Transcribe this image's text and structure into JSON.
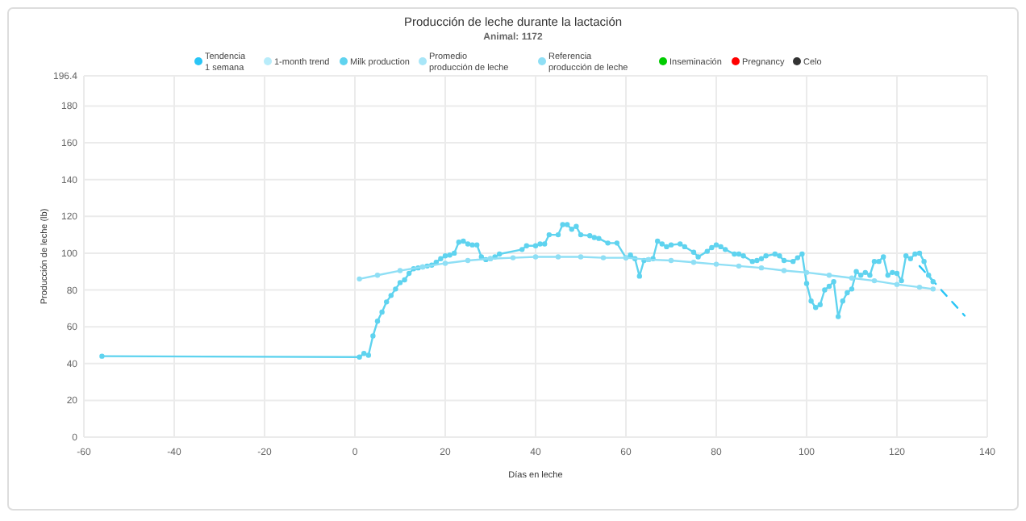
{
  "chart_data": {
    "type": "line",
    "title": "Producción de leche durante la lactación",
    "subtitle": "Animal: 1172",
    "xlabel": "Días en leche",
    "ylabel": "Producción de leche (lb)",
    "xlim": [
      -60,
      140
    ],
    "xticks": [
      -60,
      -40,
      -20,
      0,
      20,
      40,
      60,
      80,
      100,
      120,
      140
    ],
    "ylim": [
      0,
      196.4
    ],
    "yticks": [
      0,
      20,
      40,
      60,
      80,
      100,
      120,
      140,
      160,
      180,
      196.4
    ],
    "grid": true,
    "legend": "top",
    "marker": "circle",
    "series": [
      {
        "name": "Tendencia 1 semana",
        "color": "#29c5f6",
        "line_style": "dashed",
        "marker": "none",
        "x": [
          125,
          135
        ],
        "values": [
          93,
          66
        ]
      },
      {
        "name": "1-month trend",
        "color": "#b8ecfa"
      },
      {
        "name": "Milk production",
        "color": "#5fd3ef",
        "x": [
          -56,
          1,
          2,
          3,
          4,
          5,
          6,
          7,
          8,
          9,
          10,
          11,
          12,
          13,
          14,
          15,
          16,
          17,
          18,
          19,
          20,
          21,
          22,
          23,
          24,
          25,
          26,
          27,
          28,
          29,
          30,
          31,
          32,
          37,
          38,
          40,
          41,
          42,
          43,
          45,
          46,
          47,
          48,
          49,
          50,
          52,
          53,
          54,
          56,
          58,
          60,
          61,
          62,
          63,
          64,
          65,
          66,
          67,
          68,
          69,
          70,
          72,
          73,
          75,
          76,
          78,
          79,
          80,
          81,
          82,
          84,
          85,
          86,
          88,
          89,
          90,
          91,
          93,
          94,
          95,
          97,
          98,
          99,
          100,
          101,
          102,
          103,
          104,
          105,
          106,
          107,
          108,
          109,
          110,
          111,
          112,
          113,
          114,
          115,
          116,
          117,
          118,
          119,
          120,
          121,
          122,
          123,
          124,
          125,
          126,
          127,
          128
        ],
        "values": [
          44,
          43.5,
          45.5,
          44.5,
          55,
          63,
          68,
          73.5,
          77,
          80.5,
          84,
          85.5,
          89,
          91.5,
          92,
          92.5,
          93,
          93.5,
          95,
          97,
          98.5,
          99,
          100,
          106,
          106.5,
          105,
          104.5,
          104.5,
          98,
          96.5,
          97,
          98,
          99.5,
          102,
          104,
          104,
          105,
          105,
          110,
          110,
          115.5,
          115.5,
          113,
          114.5,
          110,
          109.5,
          108.5,
          108,
          105.5,
          105.5,
          97.5,
          99,
          97,
          87.5,
          96,
          96.5,
          97,
          106.5,
          105,
          103.5,
          104.5,
          105,
          103.5,
          100.5,
          98,
          101,
          103,
          104.5,
          103.5,
          102,
          99.5,
          99.5,
          98.5,
          95.5,
          96,
          97,
          98.5,
          99.5,
          98.5,
          96,
          95.5,
          97.5,
          99.5,
          83.5,
          74,
          70.5,
          72,
          80,
          82,
          84.5,
          65.5,
          74,
          78.5,
          80.5,
          90,
          88,
          89.5,
          88,
          95.5,
          95.5,
          98,
          88,
          89.5,
          89,
          85,
          98.5,
          97,
          99.5,
          100,
          95.5,
          88,
          84.5
        ]
      },
      {
        "name": "Promedio producción de leche",
        "color": "#a8e6f8"
      },
      {
        "name": "Referencia producción de leche",
        "color": "#8fdff5",
        "x": [
          1,
          5,
          10,
          15,
          20,
          25,
          30,
          35,
          40,
          45,
          50,
          55,
          60,
          65,
          70,
          75,
          80,
          85,
          90,
          95,
          100,
          105,
          110,
          115,
          120,
          125,
          128
        ],
        "values": [
          86,
          88,
          90.5,
          92.5,
          94.5,
          96,
          97,
          97.5,
          98,
          98,
          98,
          97.5,
          97.5,
          96.5,
          96,
          95,
          94,
          93,
          92,
          90.5,
          89.5,
          88,
          86.5,
          85,
          83,
          81.5,
          80.5
        ]
      },
      {
        "name": "Inseminación",
        "color": "#00cc00"
      },
      {
        "name": "Pregnancy",
        "color": "#ff0000"
      },
      {
        "name": "Celo",
        "color": "#333333"
      }
    ]
  }
}
